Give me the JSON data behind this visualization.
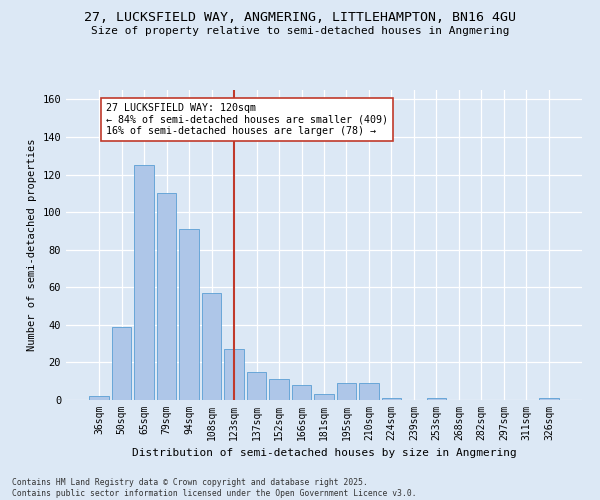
{
  "title1": "27, LUCKSFIELD WAY, ANGMERING, LITTLEHAMPTON, BN16 4GU",
  "title2": "Size of property relative to semi-detached houses in Angmering",
  "xlabel": "Distribution of semi-detached houses by size in Angmering",
  "ylabel": "Number of semi-detached properties",
  "categories": [
    "36sqm",
    "50sqm",
    "65sqm",
    "79sqm",
    "94sqm",
    "108sqm",
    "123sqm",
    "137sqm",
    "152sqm",
    "166sqm",
    "181sqm",
    "195sqm",
    "210sqm",
    "224sqm",
    "239sqm",
    "253sqm",
    "268sqm",
    "282sqm",
    "297sqm",
    "311sqm",
    "326sqm"
  ],
  "values": [
    2,
    39,
    125,
    110,
    91,
    57,
    27,
    15,
    11,
    8,
    3,
    9,
    9,
    1,
    0,
    1,
    0,
    0,
    0,
    0,
    1
  ],
  "bar_color": "#aec6e8",
  "bar_edge_color": "#5a9fd4",
  "highlight_index": 6,
  "highlight_line_color": "#c0392b",
  "annotation_text1": "27 LUCKSFIELD WAY: 120sqm",
  "annotation_text2": "← 84% of semi-detached houses are smaller (409)",
  "annotation_text3": "16% of semi-detached houses are larger (78) →",
  "footnote1": "Contains HM Land Registry data © Crown copyright and database right 2025.",
  "footnote2": "Contains public sector information licensed under the Open Government Licence v3.0.",
  "ylim_max": 165,
  "bg_color": "#dce8f5",
  "yticks": [
    0,
    20,
    40,
    60,
    80,
    100,
    120,
    140,
    160
  ]
}
